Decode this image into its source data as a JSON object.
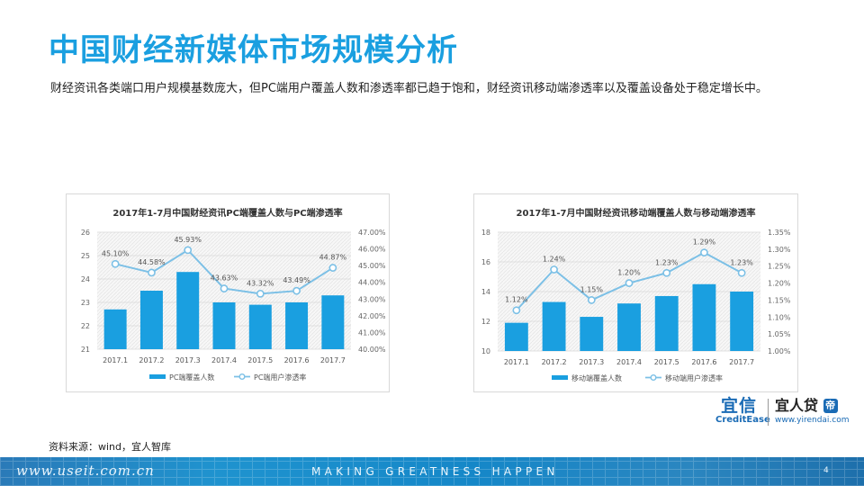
{
  "page": {
    "title": "中国财经新媒体市场规模分析",
    "description": "财经资讯各类端口用户规模基数庞大，但PC端用户覆盖人数和渗透率都已趋于饱和，财经资讯移动端渗透率以及覆盖设备处于稳定增长中。",
    "source": "资料来源：wind，宜人智库",
    "page_number": "4"
  },
  "logos": {
    "creditease_cn": "宜信",
    "creditease_en": "CreditEase",
    "yirendai_cn": "宜人贷",
    "yirendai_mark": "帝",
    "yirendai_url": "www.yirendai.com"
  },
  "footer": {
    "url": "www.useit.com.cn",
    "slogan": "MAKING GREATNESS HAPPEN"
  },
  "colors": {
    "accent": "#1a9fe0",
    "bar": "#1a9fe0",
    "line": "#7cc0e6",
    "footer": "#1f8fcf"
  },
  "chart_data": [
    {
      "type": "bar",
      "title": "2017年1-7月中国财经资讯PC端覆盖人数与PC端渗透率",
      "categories": [
        "2017.1",
        "2017.2",
        "2017.3",
        "2017.4",
        "2017.5",
        "2017.6",
        "2017.7"
      ],
      "series": [
        {
          "name": "PC端覆盖人数",
          "kind": "bar",
          "axis": "left",
          "values": [
            22.7,
            23.5,
            24.3,
            23.0,
            22.9,
            23.0,
            23.3
          ]
        },
        {
          "name": "PC端用户渗透率",
          "kind": "line",
          "axis": "right",
          "values": [
            45.1,
            44.58,
            45.93,
            43.63,
            43.32,
            43.49,
            44.87
          ],
          "labels": [
            "45.10%",
            "44.58%",
            "45.93%",
            "43.63%",
            "43.32%",
            "43.49%",
            "44.87%"
          ]
        }
      ],
      "ylim": [
        21,
        26
      ],
      "y_ticks": [
        "21",
        "22",
        "23",
        "24",
        "25",
        "26"
      ],
      "y2lim": [
        40,
        47
      ],
      "y2_ticks": [
        "40.00%",
        "41.00%",
        "42.00%",
        "43.00%",
        "44.00%",
        "45.00%",
        "46.00%",
        "47.00%"
      ],
      "grid": true,
      "legend_position": "bottom"
    },
    {
      "type": "bar",
      "title": "2017年1-7月中国财经资讯移动端覆盖人数与移动端渗透率",
      "categories": [
        "2017.1",
        "2017.2",
        "2017.3",
        "2017.4",
        "2017.5",
        "2017.6",
        "2017.7"
      ],
      "series": [
        {
          "name": "移动端覆盖人数",
          "kind": "bar",
          "axis": "left",
          "values": [
            11.9,
            13.3,
            12.3,
            13.2,
            13.7,
            14.5,
            14.0
          ]
        },
        {
          "name": "移动端用户渗透率",
          "kind": "line",
          "axis": "right",
          "values": [
            1.12,
            1.24,
            1.15,
            1.2,
            1.23,
            1.29,
            1.23
          ],
          "labels": [
            "1.12%",
            "1.24%",
            "1.15%",
            "1.20%",
            "1.23%",
            "1.29%",
            "1.23%"
          ]
        }
      ],
      "ylim": [
        10,
        18
      ],
      "y_ticks": [
        "10",
        "12",
        "14",
        "16",
        "18"
      ],
      "y2lim": [
        1.0,
        1.35
      ],
      "y2_ticks": [
        "1.00%",
        "1.05%",
        "1.10%",
        "1.15%",
        "1.20%",
        "1.25%",
        "1.30%",
        "1.35%"
      ],
      "grid": true,
      "legend_position": "bottom"
    }
  ]
}
